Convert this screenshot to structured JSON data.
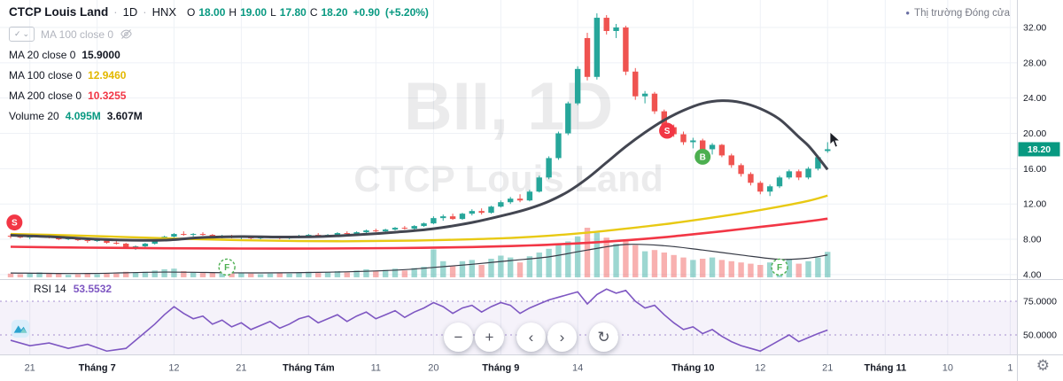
{
  "header": {
    "symbol": "CTCP Louis Land",
    "separator": "·",
    "timeframe": "1D",
    "exchange": "HNX",
    "ohlc": {
      "o_key": "O",
      "o": "18.00",
      "h_key": "H",
      "h": "19.00",
      "l_key": "L",
      "l": "17.80",
      "c_key": "C",
      "c": "18.20",
      "change": "+0.90",
      "change_pct": "(+5.20%)"
    },
    "market_status": {
      "dot": "●",
      "text": "Thị trường Đóng cửa"
    }
  },
  "legend": {
    "hidden_row": {
      "label": "MA 100 close 0",
      "check": "✓",
      "caret": "⌄"
    },
    "rows": [
      {
        "label": "MA 20 close 0",
        "value": "15.9000"
      },
      {
        "label": "MA 100 close 0",
        "value": "12.9460"
      },
      {
        "label": "MA 200 close 0",
        "value": "10.3255"
      },
      {
        "label": "Volume 20",
        "value": "4.095M",
        "value2": "3.607M"
      }
    ],
    "rsi": {
      "label": "RSI 14",
      "value": "53.5532"
    }
  },
  "watermark": {
    "line1": "BII, 1D",
    "line2": "CTCP Louis Land"
  },
  "toolbar": {
    "zoom_out": "−",
    "zoom_in": "+",
    "scroll_left": "‹",
    "scroll_right": "›",
    "reset": "↻"
  },
  "settings_gear": "⚙",
  "chart_data": {
    "type": "candlestick",
    "symbol": "BII",
    "timeframe": "1D",
    "legend_position": "top-left",
    "grid": true,
    "price_axis": {
      "range": [
        3.2,
        35.2
      ],
      "ticks": [
        {
          "p": 32,
          "label": "32.00"
        },
        {
          "p": 28,
          "label": "28.00"
        },
        {
          "p": 24,
          "label": "24.00"
        },
        {
          "p": 20,
          "label": "20.00"
        },
        {
          "p": 16,
          "label": "16.00"
        },
        {
          "p": 12,
          "label": "12.00"
        },
        {
          "p": 8,
          "label": "8.00"
        },
        {
          "p": 4,
          "label": "4.00"
        }
      ],
      "last_price": 18.2,
      "last_price_label": "18.20"
    },
    "rsi_axis": {
      "ticks": [
        {
          "v": 75,
          "label": "75.0000"
        },
        {
          "v": 50,
          "label": "50.0000"
        }
      ],
      "band": [
        25,
        75
      ],
      "current": 53.5532
    },
    "time_axis": {
      "ticks": [
        {
          "i": 2,
          "label": "21"
        },
        {
          "i": 9,
          "label": "Tháng 7",
          "month": true
        },
        {
          "i": 17,
          "label": "12"
        },
        {
          "i": 24,
          "label": "21"
        },
        {
          "i": 31,
          "label": "Tháng Tám",
          "month": true
        },
        {
          "i": 38,
          "label": "11"
        },
        {
          "i": 44,
          "label": "20"
        },
        {
          "i": 51,
          "label": "Tháng 9",
          "month": true
        },
        {
          "i": 59,
          "label": "14"
        },
        {
          "i": 71,
          "label": "Tháng 10",
          "month": true
        },
        {
          "i": 78,
          "label": "12"
        },
        {
          "i": 85,
          "label": "21"
        },
        {
          "i": 91,
          "label": "Tháng 11",
          "month": true
        },
        {
          "i": 97.5,
          "label": "10"
        },
        {
          "i": 104,
          "label": "1"
        }
      ]
    },
    "candles": [
      [
        8.4,
        8.6,
        8.1,
        8.3,
        0.6
      ],
      [
        8.3,
        8.5,
        8.1,
        8.2,
        0.5
      ],
      [
        8.2,
        8.4,
        8.0,
        8.3,
        0.7
      ],
      [
        8.3,
        8.6,
        8.2,
        8.5,
        0.8
      ],
      [
        8.5,
        8.6,
        8.1,
        8.2,
        0.7
      ],
      [
        8.2,
        8.3,
        7.9,
        8.0,
        0.6
      ],
      [
        8.0,
        8.2,
        7.9,
        8.1,
        0.4
      ],
      [
        8.1,
        8.2,
        7.8,
        7.9,
        0.5
      ],
      [
        7.9,
        8.0,
        7.6,
        7.8,
        0.6
      ],
      [
        7.8,
        8.0,
        7.7,
        7.9,
        0.5
      ],
      [
        7.9,
        7.9,
        7.5,
        7.6,
        0.7
      ],
      [
        7.6,
        7.8,
        7.4,
        7.5,
        0.6
      ],
      [
        7.5,
        7.6,
        7.0,
        7.1,
        0.9
      ],
      [
        7.1,
        7.3,
        6.8,
        7.2,
        0.8
      ],
      [
        7.2,
        7.6,
        7.1,
        7.5,
        0.9
      ],
      [
        7.5,
        8.0,
        7.4,
        7.9,
        1.1
      ],
      [
        7.9,
        8.4,
        7.8,
        8.3,
        1.3
      ],
      [
        8.3,
        8.7,
        8.2,
        8.6,
        1.4
      ],
      [
        8.6,
        8.9,
        8.4,
        8.5,
        1.0
      ],
      [
        8.5,
        8.7,
        8.3,
        8.6,
        0.8
      ],
      [
        8.6,
        8.8,
        8.4,
        8.5,
        0.7
      ],
      [
        8.5,
        8.6,
        8.2,
        8.3,
        0.8
      ],
      [
        8.3,
        8.5,
        8.1,
        8.4,
        0.6
      ],
      [
        8.4,
        8.5,
        8.1,
        8.2,
        0.6
      ],
      [
        8.2,
        8.4,
        8.0,
        8.3,
        0.7
      ],
      [
        8.3,
        8.4,
        8.0,
        8.1,
        0.6
      ],
      [
        8.1,
        8.3,
        8.0,
        8.2,
        0.5
      ],
      [
        8.2,
        8.4,
        8.1,
        8.3,
        0.6
      ],
      [
        8.3,
        8.4,
        8.0,
        8.1,
        0.7
      ],
      [
        8.1,
        8.3,
        8.0,
        8.2,
        0.6
      ],
      [
        8.2,
        8.5,
        8.1,
        8.4,
        0.8
      ],
      [
        8.4,
        8.6,
        8.3,
        8.5,
        0.9
      ],
      [
        8.5,
        8.7,
        8.3,
        8.4,
        0.7
      ],
      [
        8.4,
        8.6,
        8.3,
        8.5,
        0.8
      ],
      [
        8.5,
        8.8,
        8.4,
        8.7,
        1.0
      ],
      [
        8.7,
        8.9,
        8.5,
        8.6,
        0.8
      ],
      [
        8.6,
        8.9,
        8.5,
        8.8,
        1.1
      ],
      [
        8.8,
        9.1,
        8.7,
        9.0,
        1.3
      ],
      [
        9.0,
        9.2,
        8.8,
        8.9,
        1.0
      ],
      [
        8.9,
        9.2,
        8.8,
        9.1,
        1.2
      ],
      [
        9.1,
        9.4,
        9.0,
        9.3,
        1.4
      ],
      [
        9.3,
        9.5,
        9.1,
        9.2,
        1.1
      ],
      [
        9.2,
        9.6,
        9.1,
        9.5,
        1.5
      ],
      [
        9.5,
        9.9,
        9.4,
        9.8,
        1.7
      ],
      [
        9.8,
        10.6,
        9.7,
        10.4,
        4.5
      ],
      [
        10.4,
        10.8,
        10.1,
        10.6,
        2.6
      ],
      [
        10.6,
        10.9,
        10.2,
        10.3,
        1.8
      ],
      [
        10.3,
        11.0,
        10.2,
        10.9,
        2.6
      ],
      [
        10.9,
        11.4,
        10.7,
        11.2,
        2.8
      ],
      [
        11.2,
        11.5,
        10.8,
        11.0,
        2.0
      ],
      [
        11.0,
        11.8,
        10.9,
        11.7,
        3.0
      ],
      [
        11.7,
        12.4,
        11.6,
        12.2,
        3.5
      ],
      [
        12.2,
        12.8,
        12.0,
        12.6,
        3.2
      ],
      [
        12.6,
        13.1,
        12.2,
        12.4,
        2.4
      ],
      [
        12.4,
        13.6,
        12.3,
        13.4,
        3.4
      ],
      [
        13.4,
        15.2,
        13.3,
        15.0,
        4.0
      ],
      [
        15.0,
        17.4,
        14.8,
        17.2,
        4.6
      ],
      [
        17.2,
        20.2,
        17.0,
        20.0,
        5.2
      ],
      [
        20.0,
        23.6,
        19.8,
        23.4,
        5.8
      ],
      [
        23.4,
        27.6,
        23.2,
        27.3,
        6.6
      ],
      [
        30.8,
        31.4,
        26.0,
        26.4,
        8.0
      ],
      [
        26.4,
        33.6,
        26.1,
        33.1,
        7.2
      ],
      [
        33.1,
        33.4,
        31.2,
        31.6,
        6.4
      ],
      [
        31.6,
        32.4,
        30.8,
        32.0,
        5.4
      ],
      [
        32.0,
        32.2,
        26.6,
        27.0,
        6.0
      ],
      [
        27.0,
        27.4,
        23.8,
        24.2,
        5.2
      ],
      [
        24.2,
        24.8,
        23.4,
        24.5,
        4.2
      ],
      [
        24.5,
        24.7,
        22.2,
        22.5,
        4.4
      ],
      [
        22.5,
        22.7,
        20.4,
        20.7,
        4.0
      ],
      [
        20.7,
        21.0,
        19.6,
        19.9,
        3.6
      ],
      [
        19.9,
        20.2,
        18.7,
        19.0,
        3.2
      ],
      [
        19.0,
        19.5,
        18.3,
        19.2,
        2.8
      ],
      [
        19.2,
        19.4,
        17.9,
        18.2,
        3.0
      ],
      [
        18.2,
        18.9,
        17.6,
        18.7,
        3.2
      ],
      [
        18.7,
        18.8,
        17.3,
        17.5,
        2.8
      ],
      [
        17.5,
        17.7,
        16.1,
        16.4,
        2.6
      ],
      [
        16.4,
        16.6,
        15.1,
        15.4,
        2.4
      ],
      [
        15.4,
        15.6,
        14.1,
        14.4,
        2.2
      ],
      [
        14.4,
        14.6,
        13.1,
        13.4,
        2.0
      ],
      [
        13.4,
        14.2,
        12.9,
        14.0,
        2.4
      ],
      [
        14.0,
        15.2,
        13.8,
        15.0,
        2.8
      ],
      [
        15.0,
        15.9,
        14.8,
        15.7,
        3.0
      ],
      [
        15.7,
        15.9,
        14.7,
        15.0,
        2.2
      ],
      [
        15.0,
        16.2,
        14.8,
        16.0,
        2.6
      ],
      [
        16.0,
        17.5,
        15.8,
        17.3,
        3.2
      ],
      [
        18.0,
        19.0,
        17.8,
        18.2,
        4.1
      ]
    ],
    "ma20": [
      [
        0,
        8.45
      ],
      [
        4,
        8.3
      ],
      [
        8,
        8.05
      ],
      [
        12,
        7.9
      ],
      [
        16,
        7.9
      ],
      [
        20,
        8.2
      ],
      [
        24,
        8.3
      ],
      [
        28,
        8.25
      ],
      [
        32,
        8.3
      ],
      [
        36,
        8.5
      ],
      [
        40,
        8.8
      ],
      [
        44,
        9.2
      ],
      [
        48,
        9.9
      ],
      [
        52,
        10.9
      ],
      [
        54,
        11.5
      ],
      [
        56,
        12.3
      ],
      [
        58,
        13.4
      ],
      [
        60,
        14.9
      ],
      [
        62,
        16.7
      ],
      [
        64,
        18.5
      ],
      [
        66,
        20.1
      ],
      [
        68,
        21.5
      ],
      [
        70,
        22.6
      ],
      [
        72,
        23.4
      ],
      [
        74,
        23.7
      ],
      [
        76,
        23.5
      ],
      [
        78,
        22.8
      ],
      [
        80,
        21.6
      ],
      [
        82,
        19.6
      ],
      [
        83,
        18.6
      ],
      [
        84,
        17.3
      ],
      [
        85,
        15.9
      ]
    ],
    "ma100": [
      [
        0,
        8.6
      ],
      [
        6,
        8.45
      ],
      [
        12,
        8.25
      ],
      [
        18,
        8.05
      ],
      [
        24,
        7.9
      ],
      [
        30,
        7.8
      ],
      [
        36,
        7.78
      ],
      [
        42,
        7.85
      ],
      [
        48,
        8.0
      ],
      [
        52,
        8.15
      ],
      [
        56,
        8.4
      ],
      [
        60,
        8.75
      ],
      [
        64,
        9.2
      ],
      [
        68,
        9.7
      ],
      [
        72,
        10.3
      ],
      [
        76,
        10.95
      ],
      [
        80,
        11.7
      ],
      [
        83,
        12.35
      ],
      [
        85,
        12.95
      ]
    ],
    "ma200": [
      [
        0,
        7.15
      ],
      [
        8,
        7.05
      ],
      [
        16,
        6.98
      ],
      [
        24,
        6.95
      ],
      [
        32,
        6.95
      ],
      [
        40,
        7.0
      ],
      [
        48,
        7.12
      ],
      [
        54,
        7.3
      ],
      [
        60,
        7.6
      ],
      [
        66,
        8.05
      ],
      [
        70,
        8.45
      ],
      [
        74,
        8.9
      ],
      [
        78,
        9.4
      ],
      [
        82,
        9.9
      ],
      [
        85,
        10.33
      ]
    ],
    "vol_ma20": [
      [
        0,
        0.7
      ],
      [
        8,
        0.62
      ],
      [
        16,
        0.85
      ],
      [
        24,
        0.72
      ],
      [
        32,
        0.8
      ],
      [
        40,
        1.15
      ],
      [
        44,
        1.6
      ],
      [
        48,
        2.1
      ],
      [
        52,
        2.7
      ],
      [
        56,
        3.3
      ],
      [
        60,
        4.4
      ],
      [
        64,
        5.3
      ],
      [
        68,
        5.1
      ],
      [
        72,
        4.4
      ],
      [
        76,
        3.6
      ],
      [
        80,
        2.9
      ],
      [
        83,
        3.1
      ],
      [
        85,
        3.61
      ]
    ],
    "rsi14": [
      [
        0,
        46
      ],
      [
        2,
        42
      ],
      [
        4,
        44
      ],
      [
        6,
        40
      ],
      [
        8,
        43
      ],
      [
        10,
        38
      ],
      [
        12,
        40
      ],
      [
        13,
        46
      ],
      [
        14,
        52
      ],
      [
        15,
        58
      ],
      [
        16,
        65
      ],
      [
        17,
        71
      ],
      [
        18,
        66
      ],
      [
        19,
        62
      ],
      [
        20,
        64
      ],
      [
        21,
        58
      ],
      [
        22,
        61
      ],
      [
        23,
        56
      ],
      [
        24,
        59
      ],
      [
        25,
        54
      ],
      [
        26,
        57
      ],
      [
        27,
        60
      ],
      [
        28,
        55
      ],
      [
        29,
        58
      ],
      [
        30,
        62
      ],
      [
        31,
        64
      ],
      [
        32,
        59
      ],
      [
        33,
        62
      ],
      [
        34,
        65
      ],
      [
        35,
        60
      ],
      [
        36,
        64
      ],
      [
        37,
        67
      ],
      [
        38,
        62
      ],
      [
        39,
        65
      ],
      [
        40,
        68
      ],
      [
        41,
        63
      ],
      [
        42,
        67
      ],
      [
        43,
        70
      ],
      [
        44,
        74
      ],
      [
        45,
        71
      ],
      [
        46,
        66
      ],
      [
        47,
        70
      ],
      [
        48,
        72
      ],
      [
        49,
        67
      ],
      [
        50,
        71
      ],
      [
        51,
        74
      ],
      [
        52,
        72
      ],
      [
        53,
        66
      ],
      [
        54,
        70
      ],
      [
        55,
        73
      ],
      [
        56,
        76
      ],
      [
        57,
        78
      ],
      [
        58,
        80
      ],
      [
        59,
        82
      ],
      [
        60,
        73
      ],
      [
        61,
        80
      ],
      [
        62,
        84
      ],
      [
        63,
        81
      ],
      [
        64,
        83
      ],
      [
        65,
        75
      ],
      [
        66,
        70
      ],
      [
        67,
        72
      ],
      [
        68,
        65
      ],
      [
        69,
        59
      ],
      [
        70,
        54
      ],
      [
        71,
        56
      ],
      [
        72,
        51
      ],
      [
        73,
        54
      ],
      [
        74,
        49
      ],
      [
        75,
        45
      ],
      [
        76,
        42
      ],
      [
        77,
        40
      ],
      [
        78,
        38
      ],
      [
        79,
        42
      ],
      [
        80,
        46
      ],
      [
        81,
        50
      ],
      [
        82,
        45
      ],
      [
        83,
        48
      ],
      [
        84,
        51
      ],
      [
        85,
        53.6
      ]
    ],
    "markers": [
      {
        "label": "S",
        "i": 0.4,
        "p": 9.9,
        "kind": "sell"
      },
      {
        "label": "F",
        "i": 22.5,
        "p": 4.85,
        "kind": "flag"
      },
      {
        "label": "S",
        "i": 68.3,
        "p": 20.3,
        "kind": "sell"
      },
      {
        "label": "B",
        "i": 72,
        "p": 17.35,
        "kind": "buy"
      },
      {
        "label": "F",
        "i": 80,
        "p": 4.85,
        "kind": "flag"
      }
    ],
    "colors": {
      "up": "#26a69a",
      "down": "#ef5350",
      "vol_up": "rgba(38,166,154,0.45)",
      "vol_down": "rgba(239,83,80,0.45)",
      "ma20": "#434651",
      "ma100": "#e8c913",
      "ma200": "#f23645",
      "vol_ma": "#363a45",
      "rsi": "#7e57c2",
      "rsi_band": "rgba(126,87,194,0.08)",
      "rsi_level": "#a58fd0",
      "grid": "#eef1f6",
      "axis_text": "#131722",
      "badge_bg": "#089981",
      "sell": "#f23645",
      "buy": "#4caf50",
      "flag": "#4caf50"
    }
  }
}
